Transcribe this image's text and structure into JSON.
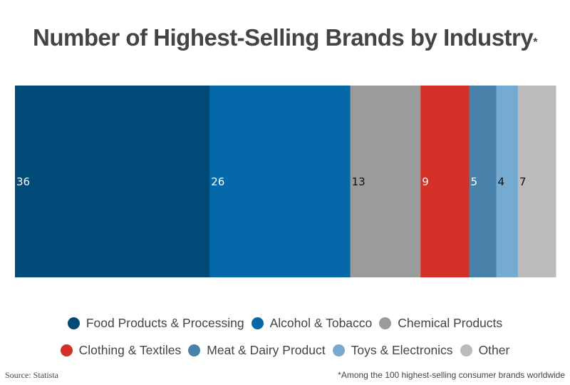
{
  "chart_data": {
    "type": "bar",
    "subtype": "stacked-horizontal-100",
    "title": "Number of Highest-Selling Brands by Industry",
    "title_marker": "*",
    "xlabel": "",
    "ylabel": "",
    "xlim": [
      0,
      100
    ],
    "grid": false,
    "legend_position": "bottom",
    "series": [
      {
        "name": "Food Products & Processing",
        "value": 36,
        "color": "#004a77",
        "label_color": "#ffffff"
      },
      {
        "name": "Alcohol & Tobacco",
        "value": 26,
        "color": "#0468a9",
        "label_color": "#ffffff"
      },
      {
        "name": "Chemical Products",
        "value": 13,
        "color": "#9b9b9b",
        "label_color": "#111111"
      },
      {
        "name": "Clothing & Textiles",
        "value": 9,
        "color": "#d33128",
        "label_color": "#ffffff"
      },
      {
        "name": "Meat & Dairy Product",
        "value": 5,
        "color": "#4882ab",
        "label_color": "#ffffff"
      },
      {
        "name": "Toys & Electronics",
        "value": 4,
        "color": "#75abd3",
        "label_color": "#111111"
      },
      {
        "name": "Other",
        "value": 7,
        "color": "#bbbbbb",
        "label_color": "#111111"
      }
    ]
  },
  "legend_rows": [
    [
      0,
      1,
      2
    ],
    [
      3,
      4,
      5,
      6
    ]
  ],
  "footer": {
    "source": "Source: Statista",
    "footnote": "*Among the 100 highest-selling consumer brands worldwide"
  }
}
